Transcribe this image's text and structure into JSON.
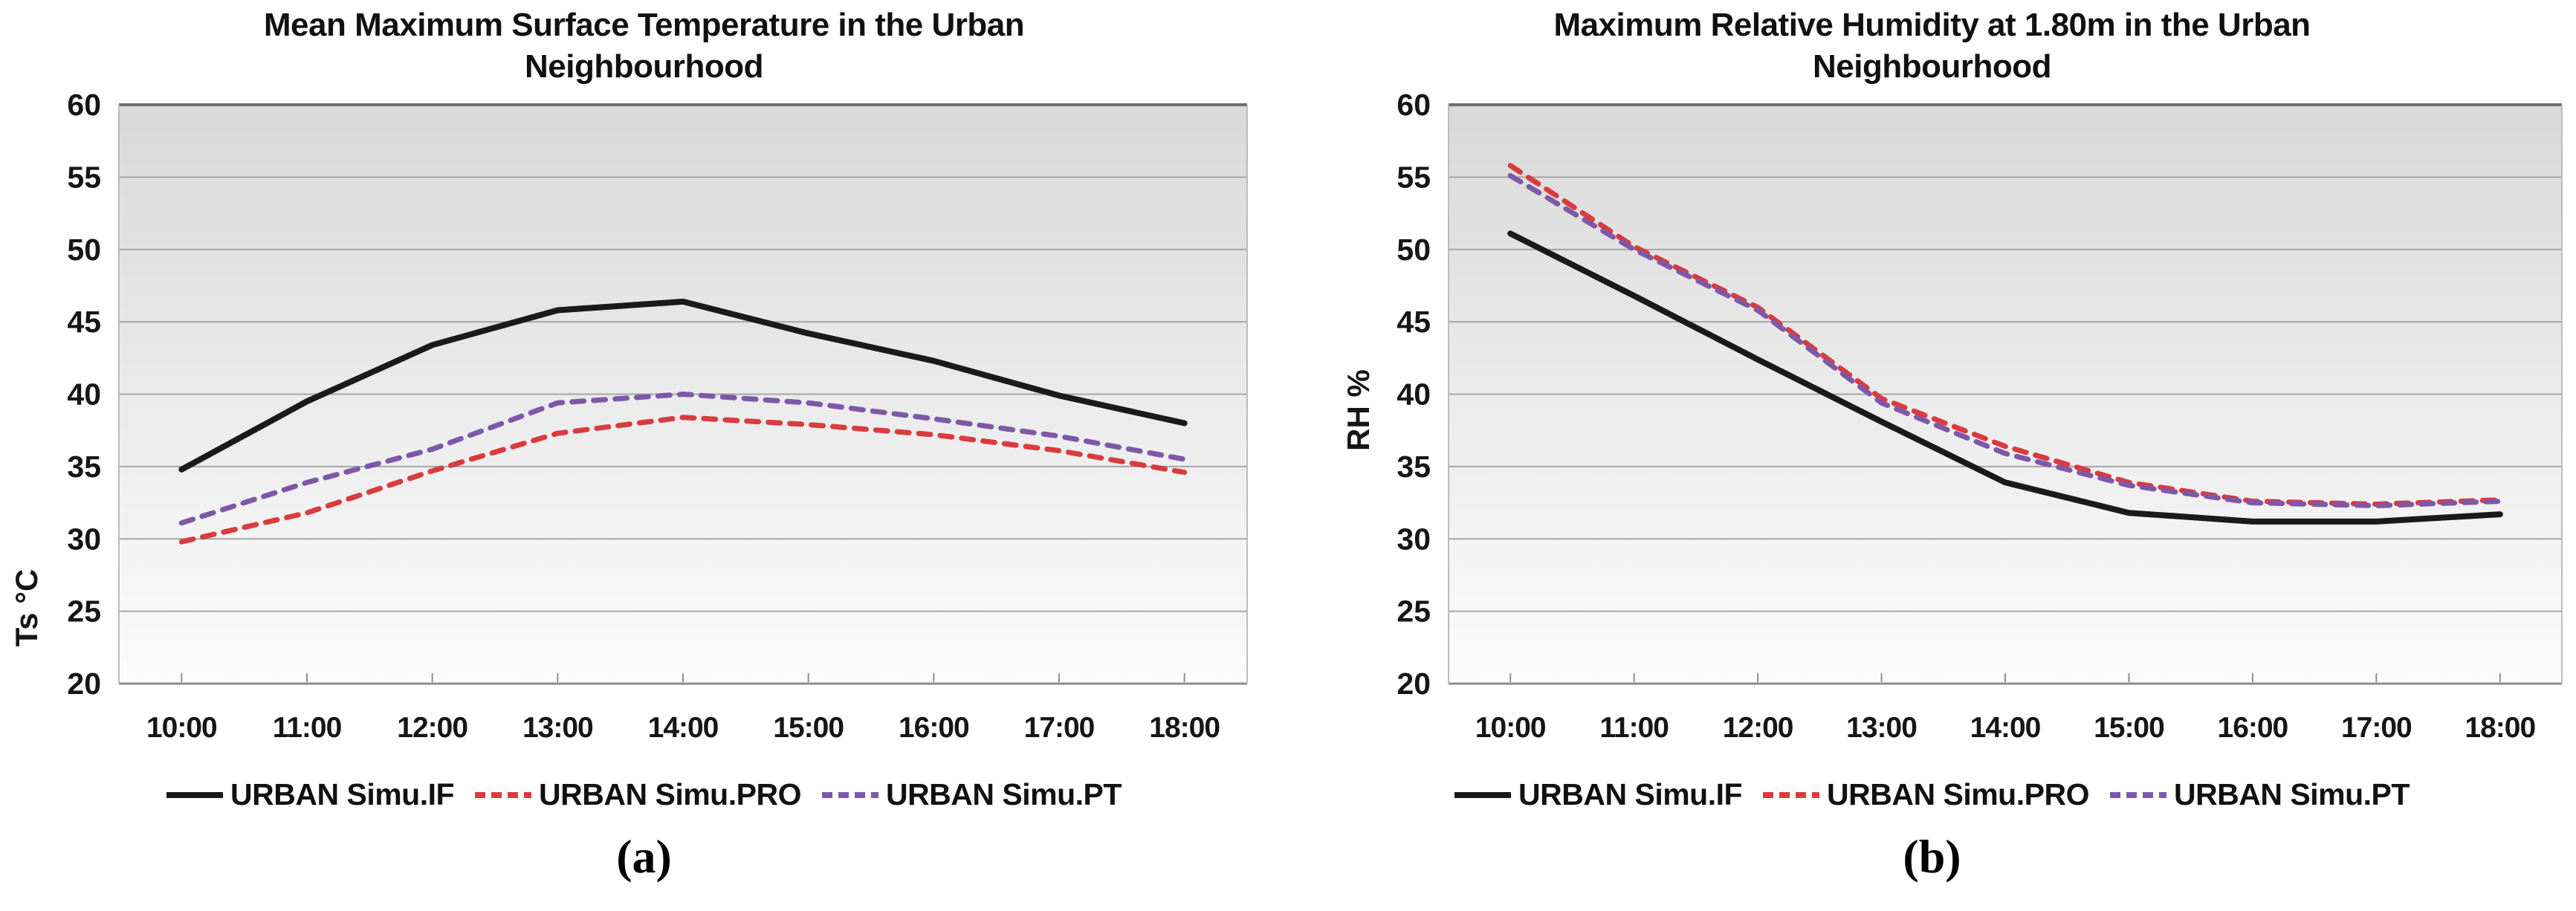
{
  "page": {
    "background": "#ffffff"
  },
  "style": {
    "plot_bg_top": "#D9D9D9",
    "plot_bg_bottom": "#FCFCFC",
    "gridline_color": "#A6A6A8",
    "border_top_color": "#6E6E6E",
    "border_bottom_color": "#8C8C8C",
    "border_side_color": "#BCBCBC",
    "tick_color": "#8F8F8F",
    "text_color": "#161616",
    "series_black": "#1A1A1A",
    "series_red": "#D93B3E",
    "series_purple": "#7E58A8"
  },
  "chart_data": [
    {
      "id": "a",
      "type": "line",
      "title": "Mean Maximum Surface Temperature in the Urban Neighbourhood",
      "ylabel": "Ts °C",
      "xlabel": "",
      "caption": "(a)",
      "x": [
        "10:00",
        "11:00",
        "12:00",
        "13:00",
        "14:00",
        "15:00",
        "16:00",
        "17:00",
        "18:00"
      ],
      "ylim": [
        20,
        60
      ],
      "yticks": [
        60,
        55,
        50,
        45,
        40,
        35,
        30,
        25,
        20
      ],
      "grid": true,
      "legend_position": "bottom",
      "series": [
        {
          "name": "URBAN Simu.IF",
          "style": "solid",
          "color": "#1A1A1A",
          "values": [
            34.8,
            39.5,
            43.4,
            45.8,
            46.4,
            44.2,
            42.3,
            39.9,
            38.0
          ]
        },
        {
          "name": "URBAN Simu.PRO",
          "style": "dashed",
          "color": "#D93B3E",
          "values": [
            29.8,
            31.8,
            34.7,
            37.3,
            38.4,
            37.9,
            37.2,
            36.1,
            34.6
          ]
        },
        {
          "name": "URBAN Simu.PT",
          "style": "dashed",
          "color": "#7E58A8",
          "values": [
            31.1,
            33.9,
            36.2,
            39.4,
            40.0,
            39.4,
            38.3,
            37.1,
            35.5
          ]
        }
      ]
    },
    {
      "id": "b",
      "type": "line",
      "title": "Maximum Relative Humidity at 1.80m in the Urban Neighbourhood",
      "ylabel": "RH %",
      "xlabel": "",
      "caption": "(b)",
      "x": [
        "10:00",
        "11:00",
        "12:00",
        "13:00",
        "14:00",
        "15:00",
        "16:00",
        "17:00",
        "18:00"
      ],
      "ylim": [
        20,
        60
      ],
      "yticks": [
        60,
        55,
        50,
        45,
        40,
        35,
        30,
        25,
        20
      ],
      "grid": true,
      "legend_position": "bottom",
      "series": [
        {
          "name": "URBAN Simu.IF",
          "style": "solid",
          "color": "#1A1A1A",
          "values": [
            51.1,
            46.8,
            42.4,
            38.1,
            33.9,
            31.8,
            31.2,
            31.2,
            31.7
          ]
        },
        {
          "name": "URBAN Simu.PRO",
          "style": "dashed",
          "color": "#D93B3E",
          "values": [
            55.8,
            50.2,
            46.0,
            39.7,
            36.4,
            33.9,
            32.6,
            32.4,
            32.7
          ]
        },
        {
          "name": "URBAN Simu.PT",
          "style": "dashed",
          "color": "#7E58A8",
          "values": [
            55.1,
            50.0,
            45.8,
            39.4,
            35.9,
            33.7,
            32.5,
            32.3,
            32.6
          ]
        }
      ]
    }
  ]
}
